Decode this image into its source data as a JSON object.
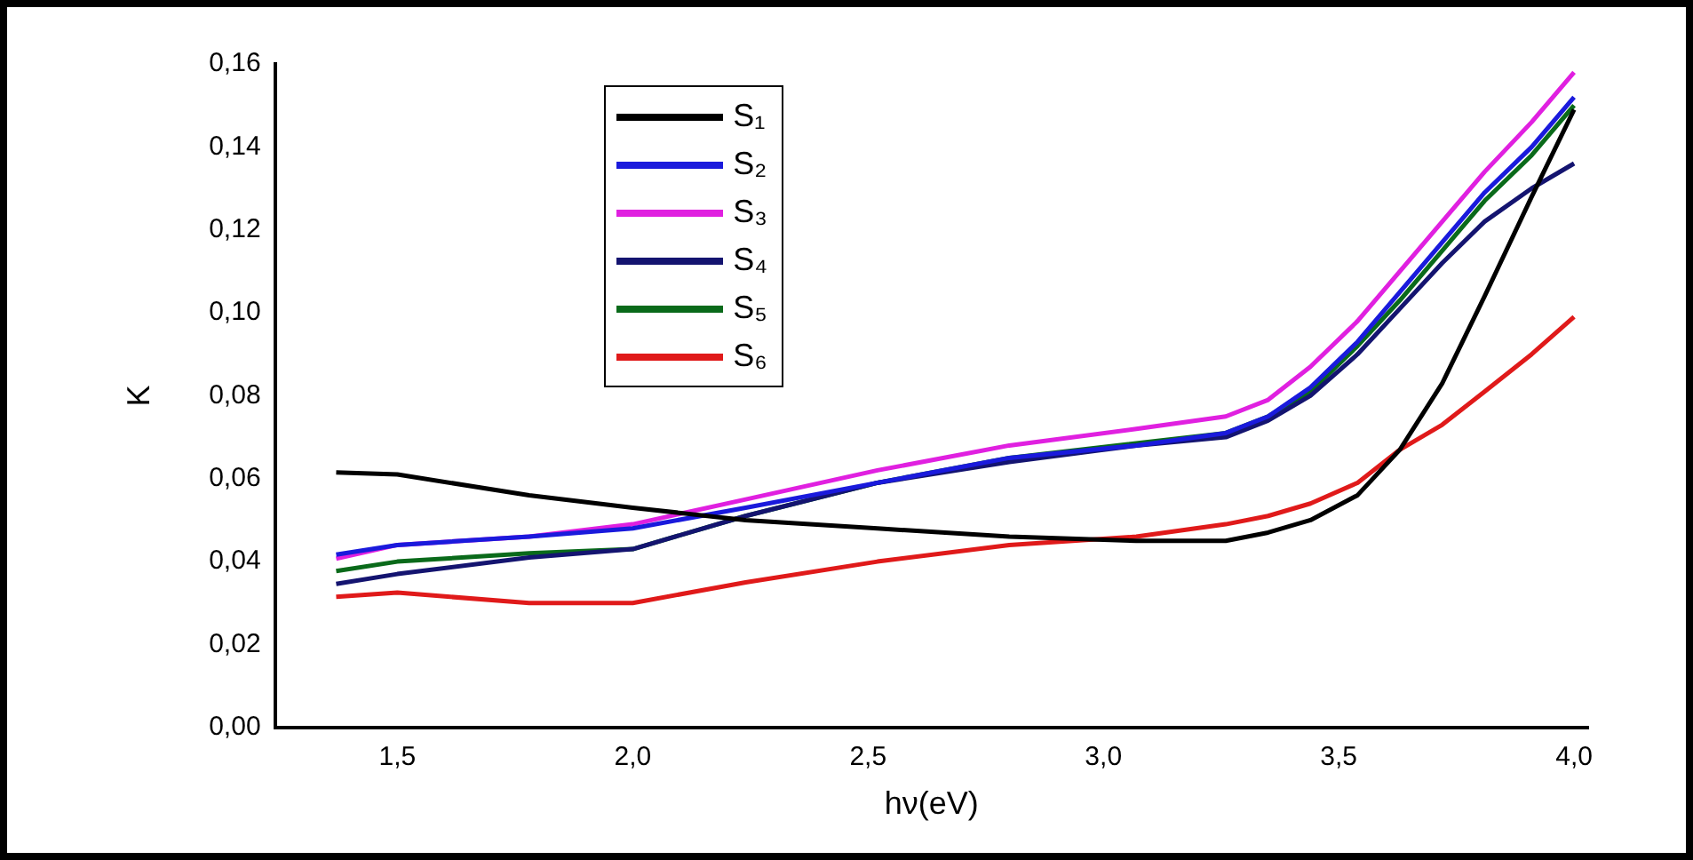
{
  "chart_data": {
    "type": "line",
    "xlabel": "hν(eV)",
    "ylabel": "K",
    "x": [
      1.37,
      1.5,
      1.78,
      2.0,
      2.24,
      2.52,
      2.8,
      3.07,
      3.26,
      3.35,
      3.44,
      3.54,
      3.63,
      3.72,
      3.81,
      3.91,
      4.0
    ],
    "series": [
      {
        "name": "S₁",
        "color": "#000000",
        "values": [
          0.0615,
          0.061,
          0.056,
          0.053,
          0.05,
          0.048,
          0.046,
          0.045,
          0.045,
          0.047,
          0.05,
          0.056,
          0.067,
          0.083,
          0.104,
          0.128,
          0.149
        ]
      },
      {
        "name": "S₂",
        "color": "#1a1adc",
        "values": [
          0.0417,
          0.044,
          0.046,
          0.048,
          0.053,
          0.059,
          0.065,
          0.068,
          0.071,
          0.075,
          0.082,
          0.093,
          0.105,
          0.117,
          0.129,
          0.14,
          0.152
        ]
      },
      {
        "name": "S₃",
        "color": "#e020e0",
        "values": [
          0.0407,
          0.044,
          0.046,
          0.049,
          0.055,
          0.062,
          0.068,
          0.072,
          0.075,
          0.079,
          0.087,
          0.098,
          0.11,
          0.122,
          0.134,
          0.146,
          0.158
        ]
      },
      {
        "name": "S₄",
        "color": "#141470",
        "values": [
          0.0346,
          0.037,
          0.041,
          0.043,
          0.051,
          0.059,
          0.064,
          0.068,
          0.07,
          0.074,
          0.08,
          0.09,
          0.101,
          0.112,
          0.122,
          0.13,
          0.136
        ]
      },
      {
        "name": "S₅",
        "color": "#0a6a1a",
        "values": [
          0.0377,
          0.04,
          0.042,
          0.043,
          0.051,
          0.059,
          0.065,
          null,
          0.071,
          0.075,
          0.081,
          0.092,
          0.103,
          0.115,
          0.127,
          0.138,
          0.15
        ]
      },
      {
        "name": "S₆",
        "color": "#e01a1a",
        "values": [
          0.0315,
          0.0325,
          0.03,
          0.03,
          0.035,
          0.04,
          0.044,
          0.046,
          0.049,
          0.051,
          0.054,
          0.059,
          0.067,
          0.073,
          0.081,
          0.09,
          0.099
        ]
      }
    ],
    "xlim": [
      1.24,
      4.03
    ],
    "xticks": [
      {
        "value": 1.5,
        "label": "1,5"
      },
      {
        "value": 2.0,
        "label": "2,0"
      },
      {
        "value": 2.5,
        "label": "2,5"
      },
      {
        "value": 3.0,
        "label": "3,0"
      },
      {
        "value": 3.5,
        "label": "3,5"
      },
      {
        "value": 4.0,
        "label": "4,0"
      }
    ],
    "ylim": [
      0,
      0.16
    ],
    "yticks": [
      {
        "value": 0,
        "label": "0,00"
      },
      {
        "value": 0.02,
        "label": "0,02"
      },
      {
        "value": 0.04,
        "label": "0,04"
      },
      {
        "value": 0.06,
        "label": "0,06"
      },
      {
        "value": 0.08,
        "label": "0,08"
      },
      {
        "value": 0.1,
        "label": "0,10"
      },
      {
        "value": 0.12,
        "label": "0,12"
      },
      {
        "value": 0.14,
        "label": "0,14"
      },
      {
        "value": 0.16,
        "label": "0,16"
      }
    ],
    "grid": false,
    "legend": "top left",
    "marker": "none",
    "line_style": "solid"
  }
}
